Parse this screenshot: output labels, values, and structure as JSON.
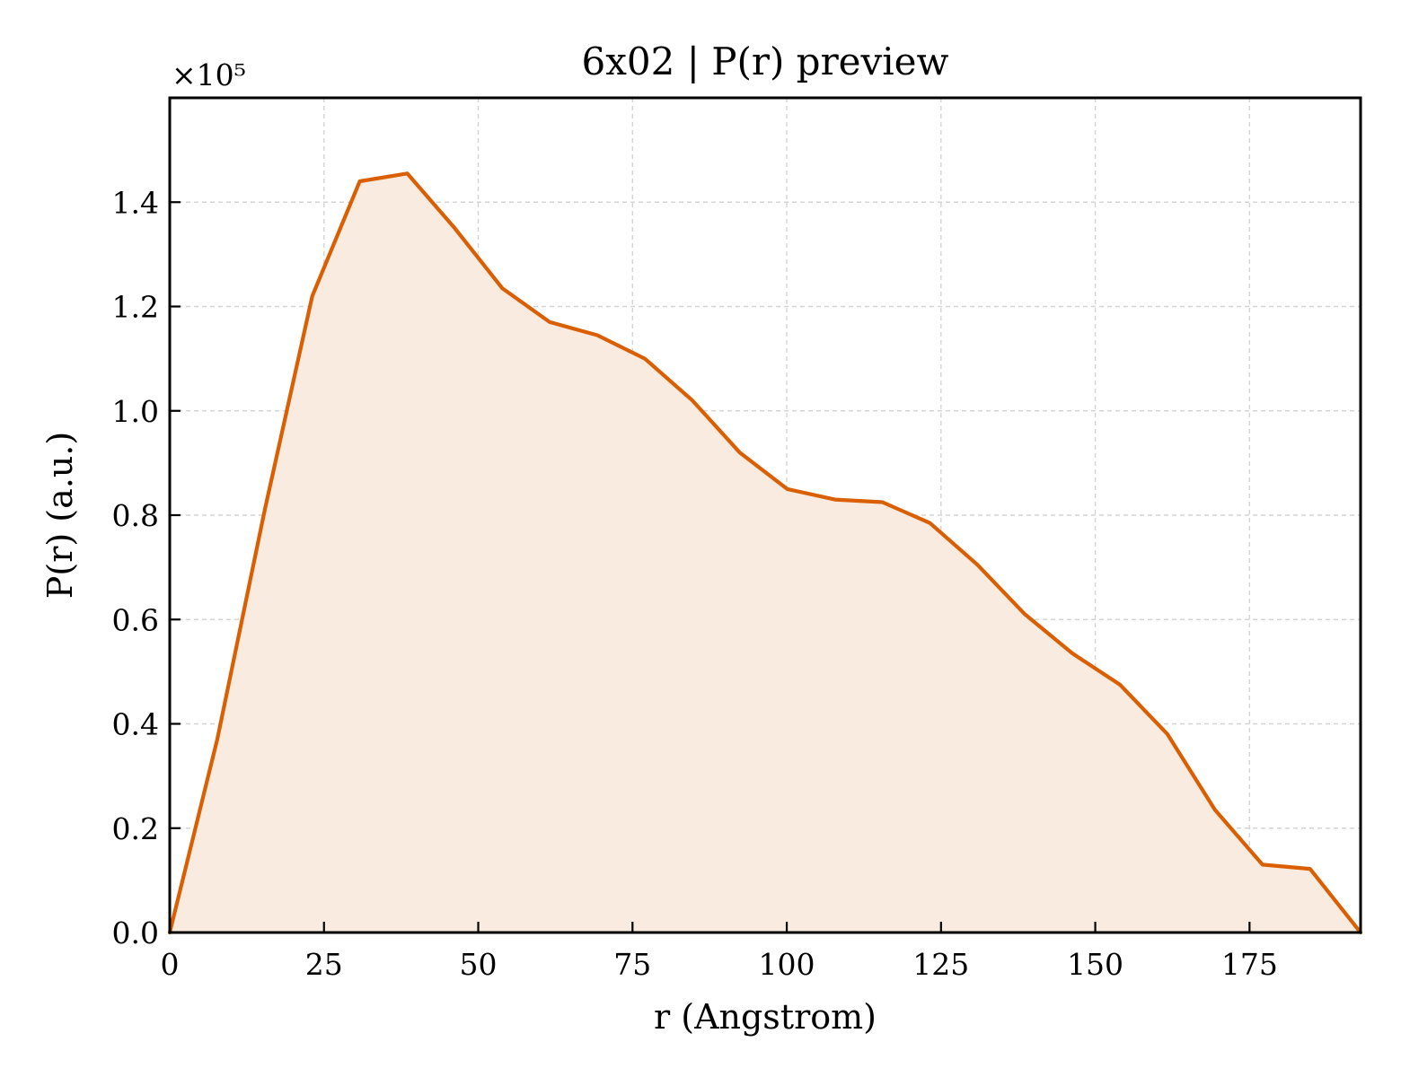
{
  "chart_data": {
    "type": "area",
    "title": "6x02 | P(r) preview",
    "xlabel": "r (Angstrom)",
    "ylabel": "P(r) (a.u.)",
    "y_offset_text": "×10⁵",
    "y_multiplier": 100000,
    "xlim": [
      0,
      193
    ],
    "ylim": [
      0,
      1.6
    ],
    "xticks": [
      0,
      25,
      50,
      75,
      100,
      125,
      150,
      175
    ],
    "xtick_labels": [
      "0",
      "25",
      "50",
      "75",
      "100",
      "125",
      "150",
      "175"
    ],
    "yticks": [
      0.0,
      0.2,
      0.4,
      0.6,
      0.8,
      1.0,
      1.2,
      1.4
    ],
    "ytick_labels": [
      "0.0",
      "0.2",
      "0.4",
      "0.6",
      "0.8",
      "1.0",
      "1.2",
      "1.4"
    ],
    "grid": true,
    "line_color": "#d95f02",
    "fill_color": "#f9ebe0",
    "series": [
      {
        "x": [
          0,
          7.7,
          15.4,
          23.1,
          30.8,
          38.5,
          46.2,
          53.9,
          61.6,
          69.3,
          77.0,
          84.7,
          92.4,
          100.1,
          107.8,
          115.5,
          123.2,
          130.9,
          138.6,
          146.3,
          154.0,
          161.7,
          169.4,
          177.1,
          184.8,
          193.0
        ],
        "y": [
          0.0,
          0.37,
          0.81,
          1.22,
          1.44,
          1.455,
          1.35,
          1.235,
          1.17,
          1.145,
          1.1,
          1.02,
          0.92,
          0.85,
          0.83,
          0.825,
          0.785,
          0.705,
          0.61,
          0.535,
          0.475,
          0.38,
          0.235,
          0.13,
          0.122,
          0.0
        ]
      }
    ]
  }
}
